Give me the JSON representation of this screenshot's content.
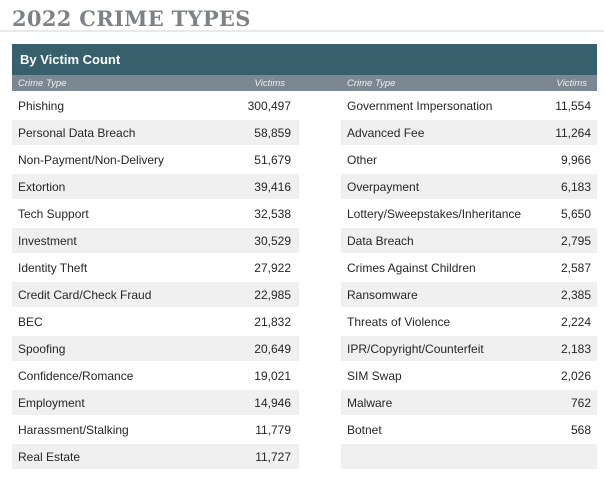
{
  "page": {
    "title": "2022 CRIME TYPES",
    "subtitle": "By Victim Count"
  },
  "columns": {
    "type_label": "Crime Type",
    "victims_label": "Victims"
  },
  "colors": {
    "header_bg": "#37606c",
    "colhead_bg": "#7c8891",
    "stripe": "#f0f0f0"
  },
  "left": [
    {
      "type": "Phishing",
      "victims": "300,497"
    },
    {
      "type": "Personal Data Breach",
      "victims": "58,859"
    },
    {
      "type": "Non-Payment/Non-Delivery",
      "victims": "51,679"
    },
    {
      "type": "Extortion",
      "victims": "39,416"
    },
    {
      "type": "Tech Support",
      "victims": "32,538"
    },
    {
      "type": "Investment",
      "victims": "30,529"
    },
    {
      "type": "Identity Theft",
      "victims": "27,922"
    },
    {
      "type": "Credit Card/Check Fraud",
      "victims": "22,985"
    },
    {
      "type": "BEC",
      "victims": "21,832"
    },
    {
      "type": "Spoofing",
      "victims": "20,649"
    },
    {
      "type": "Confidence/Romance",
      "victims": "19,021"
    },
    {
      "type": "Employment",
      "victims": "14,946"
    },
    {
      "type": "Harassment/Stalking",
      "victims": "11,779"
    },
    {
      "type": "Real Estate",
      "victims": "11,727"
    }
  ],
  "right": [
    {
      "type": "Government Impersonation",
      "victims": "11,554"
    },
    {
      "type": "Advanced Fee",
      "victims": "11,264"
    },
    {
      "type": "Other",
      "victims": "9,966"
    },
    {
      "type": "Overpayment",
      "victims": "6,183"
    },
    {
      "type": "Lottery/Sweepstakes/Inheritance",
      "victims": "5,650"
    },
    {
      "type": "Data Breach",
      "victims": "2,795"
    },
    {
      "type": "Crimes Against Children",
      "victims": "2,587"
    },
    {
      "type": "Ransomware",
      "victims": "2,385"
    },
    {
      "type": "Threats of Violence",
      "victims": "2,224"
    },
    {
      "type": "IPR/Copyright/Counterfeit",
      "victims": "2,183"
    },
    {
      "type": "SIM Swap",
      "victims": "2,026"
    },
    {
      "type": "Malware",
      "victims": "762"
    },
    {
      "type": "Botnet",
      "victims": "568"
    },
    {
      "type": "",
      "victims": ""
    }
  ]
}
